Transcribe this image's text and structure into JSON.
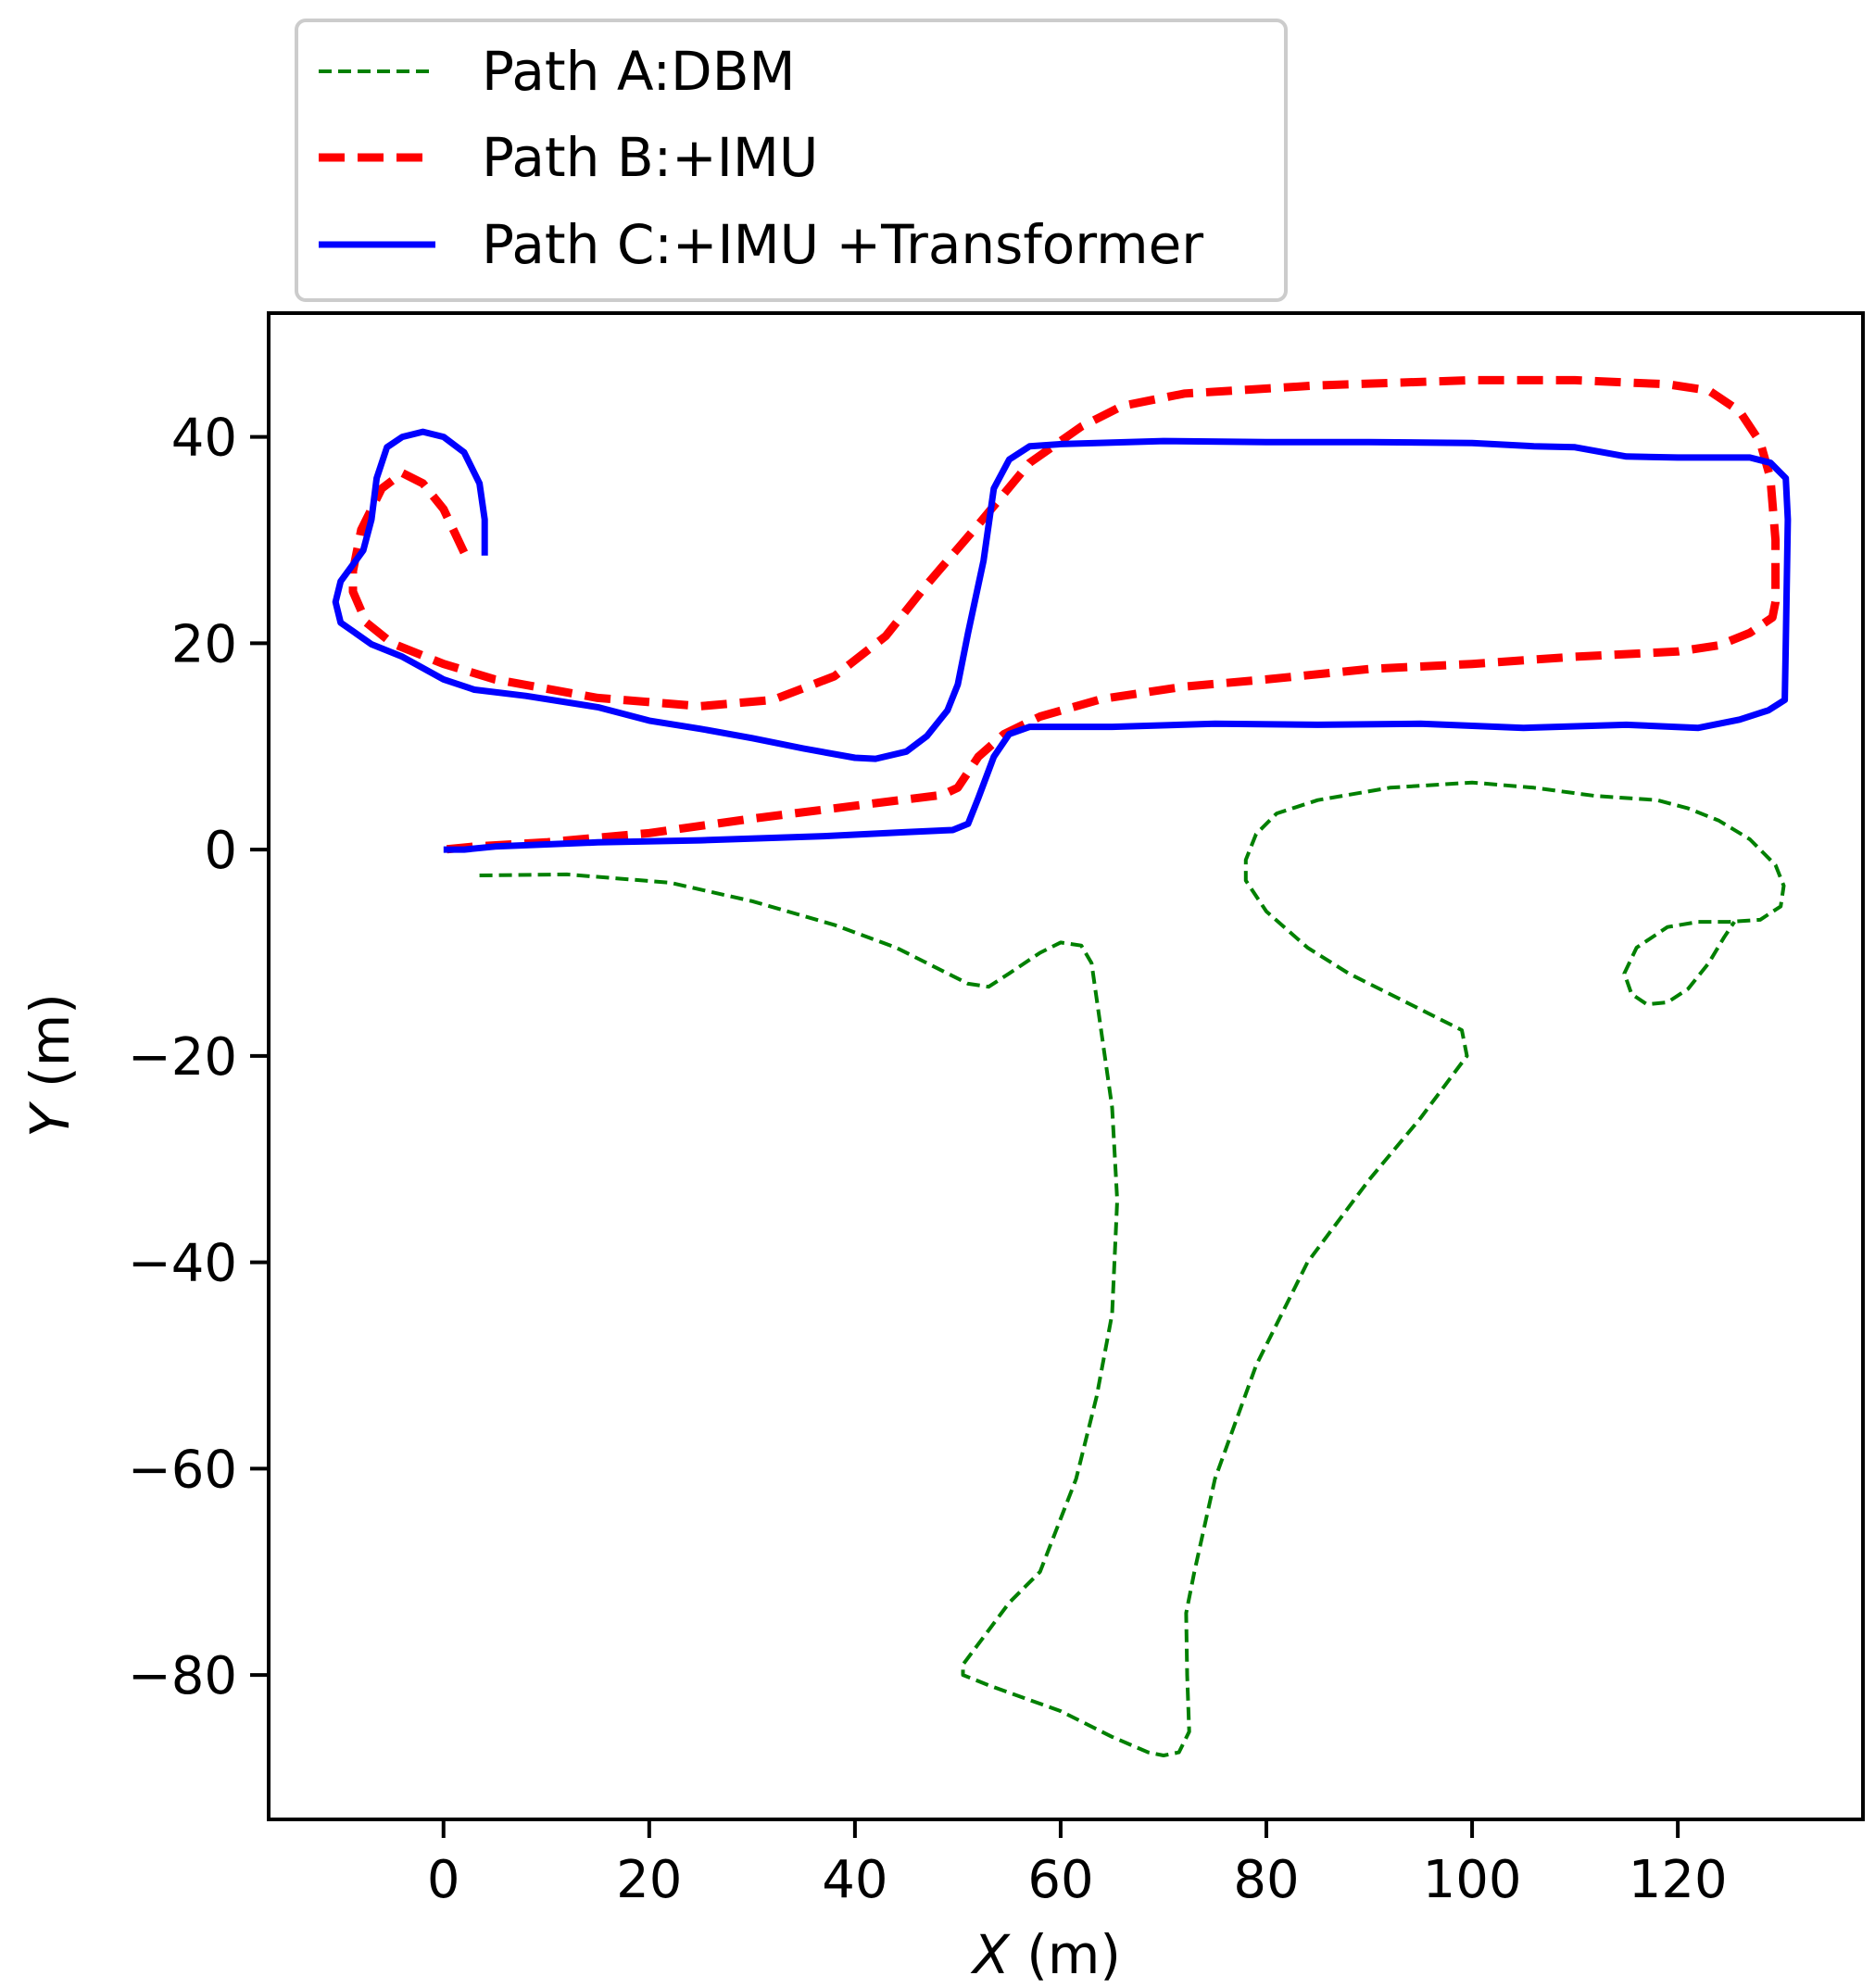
{
  "chart_data": {
    "type": "line",
    "xlabel_var": "X",
    "xlabel_unit": " (m)",
    "ylabel_var": "Y",
    "ylabel_unit": " (m)",
    "xlim": [
      -17,
      138
    ],
    "ylim": [
      -94,
      52
    ],
    "xticks": [
      0,
      20,
      40,
      60,
      80,
      100,
      120
    ],
    "yticks": [
      40,
      20,
      0,
      -20,
      -40,
      -60,
      -80
    ],
    "xtick_labels": [
      "0",
      "20",
      "40",
      "60",
      "80",
      "100",
      "120"
    ],
    "ytick_labels": [
      "40",
      "20",
      "0",
      "−20",
      "−40",
      "−60",
      "−80"
    ],
    "grid": false,
    "legend_position": "above plot, left",
    "series": [
      {
        "name": "Path A:DBM",
        "color": "#008000",
        "style": "dashed-thin",
        "points": [
          [
            3.5,
            -2.5
          ],
          [
            12,
            -2.4
          ],
          [
            22,
            -3.2
          ],
          [
            30,
            -5
          ],
          [
            38,
            -7.3
          ],
          [
            44,
            -9.5
          ],
          [
            48,
            -11.5
          ],
          [
            51,
            -13
          ],
          [
            53,
            -13.3
          ],
          [
            55,
            -12
          ],
          [
            58,
            -10
          ],
          [
            60,
            -9
          ],
          [
            62,
            -9.3
          ],
          [
            63,
            -11
          ],
          [
            64,
            -18
          ],
          [
            65,
            -25
          ],
          [
            65.5,
            -34
          ],
          [
            65,
            -45
          ],
          [
            63.5,
            -53
          ],
          [
            61.5,
            -61
          ],
          [
            58,
            -70
          ],
          [
            55,
            -73
          ],
          [
            52,
            -77
          ],
          [
            50.5,
            -79
          ],
          [
            50.5,
            -80
          ],
          [
            53,
            -81
          ],
          [
            60,
            -83.5
          ],
          [
            65,
            -86
          ],
          [
            68.5,
            -87.5
          ],
          [
            70,
            -87.8
          ],
          [
            71.5,
            -87.5
          ],
          [
            72.5,
            -85.5
          ],
          [
            72.3,
            -80
          ],
          [
            72.2,
            -74
          ],
          [
            73,
            -70
          ],
          [
            75,
            -61
          ],
          [
            79,
            -50
          ],
          [
            84,
            -40
          ],
          [
            90,
            -32
          ],
          [
            95,
            -26
          ],
          [
            98,
            -22
          ],
          [
            99.5,
            -20
          ],
          [
            99,
            -17.5
          ],
          [
            97,
            -16.5
          ],
          [
            93,
            -14.5
          ],
          [
            88,
            -12
          ],
          [
            84,
            -9.5
          ],
          [
            80,
            -6
          ],
          [
            78,
            -3
          ],
          [
            78,
            -1
          ],
          [
            79,
            1.5
          ],
          [
            81,
            3.5
          ],
          [
            85,
            4.8
          ],
          [
            92,
            6
          ],
          [
            100,
            6.5
          ],
          [
            106,
            6
          ],
          [
            112,
            5.2
          ],
          [
            118,
            4.8
          ],
          [
            121,
            4
          ],
          [
            124,
            2.8
          ],
          [
            127,
            1
          ],
          [
            129.5,
            -1.5
          ],
          [
            130.3,
            -3.5
          ],
          [
            130,
            -5.5
          ],
          [
            128,
            -6.8
          ],
          [
            125,
            -7
          ],
          [
            122,
            -7
          ],
          [
            119,
            -7.5
          ],
          [
            116,
            -9.5
          ],
          [
            114.8,
            -12
          ],
          [
            115.5,
            -14
          ],
          [
            117,
            -15
          ],
          [
            119,
            -14.8
          ],
          [
            121,
            -13.5
          ],
          [
            123,
            -11
          ],
          [
            124.5,
            -8.5
          ],
          [
            125.5,
            -7
          ]
        ]
      },
      {
        "name": "Path B:+IMU",
        "color": "#ff0000",
        "style": "dashed-thick",
        "points": [
          [
            2,
            28.8
          ],
          [
            0,
            33
          ],
          [
            -2,
            35.5
          ],
          [
            -4,
            36.5
          ],
          [
            -6,
            35
          ],
          [
            -8,
            31
          ],
          [
            -8.8,
            27
          ],
          [
            -8.8,
            25
          ],
          [
            -7.5,
            22
          ],
          [
            -5,
            20
          ],
          [
            0,
            18
          ],
          [
            5,
            16.5
          ],
          [
            15,
            14.7
          ],
          [
            25,
            13.9
          ],
          [
            32,
            14.5
          ],
          [
            38,
            16.8
          ],
          [
            43,
            20.7
          ],
          [
            47,
            25.7
          ],
          [
            52,
            31.5
          ],
          [
            57,
            37.5
          ],
          [
            62,
            41
          ],
          [
            66,
            43
          ],
          [
            72,
            44.2
          ],
          [
            85,
            45
          ],
          [
            100,
            45.5
          ],
          [
            110,
            45.5
          ],
          [
            119,
            45.1
          ],
          [
            123,
            44.5
          ],
          [
            126,
            42.5
          ],
          [
            128,
            39.5
          ],
          [
            129,
            36
          ],
          [
            129.5,
            30
          ],
          [
            129.5,
            24
          ],
          [
            129.2,
            22.5
          ],
          [
            127,
            21
          ],
          [
            124,
            19.8
          ],
          [
            120,
            19.2
          ],
          [
            110,
            18.7
          ],
          [
            100,
            18
          ],
          [
            90,
            17.5
          ],
          [
            80,
            16.5
          ],
          [
            72,
            15.8
          ],
          [
            64,
            14.6
          ],
          [
            58,
            12.9
          ],
          [
            54.5,
            11.2
          ],
          [
            52,
            9
          ],
          [
            50,
            6
          ],
          [
            48.5,
            5.3
          ],
          [
            42,
            4.5
          ],
          [
            30,
            3
          ],
          [
            20,
            1.6
          ],
          [
            10,
            0.7
          ],
          [
            3,
            0.3
          ],
          [
            0,
            0
          ]
        ]
      },
      {
        "name": "Path C:+IMU +Transformer",
        "color": "#0000ff",
        "style": "solid",
        "points": [
          [
            4,
            28.5
          ],
          [
            4,
            32
          ],
          [
            3.5,
            35.5
          ],
          [
            2,
            38.5
          ],
          [
            0,
            40
          ],
          [
            -2,
            40.5
          ],
          [
            -4,
            40
          ],
          [
            -5.5,
            39
          ],
          [
            -6.5,
            36
          ],
          [
            -7,
            32
          ],
          [
            -7.8,
            29
          ],
          [
            -10,
            26
          ],
          [
            -10.5,
            24
          ],
          [
            -10,
            22
          ],
          [
            -7,
            19.9
          ],
          [
            -4,
            18.7
          ],
          [
            0,
            16.5
          ],
          [
            3,
            15.5
          ],
          [
            8,
            14.9
          ],
          [
            15,
            13.8
          ],
          [
            20,
            12.5
          ],
          [
            25,
            11.7
          ],
          [
            30,
            10.8
          ],
          [
            35,
            9.8
          ],
          [
            40,
            8.9
          ],
          [
            42,
            8.8
          ],
          [
            45,
            9.5
          ],
          [
            47,
            11
          ],
          [
            49,
            13.5
          ],
          [
            50,
            16
          ],
          [
            51,
            21
          ],
          [
            52.5,
            28
          ],
          [
            53.5,
            35
          ],
          [
            55,
            37.8
          ],
          [
            57,
            39.1
          ],
          [
            60,
            39.3
          ],
          [
            70,
            39.6
          ],
          [
            80,
            39.5
          ],
          [
            90,
            39.5
          ],
          [
            100,
            39.4
          ],
          [
            106,
            39.1
          ],
          [
            110,
            39
          ],
          [
            115,
            38.1
          ],
          [
            120,
            38
          ],
          [
            125,
            38
          ],
          [
            127,
            38
          ],
          [
            129,
            37.5
          ],
          [
            130.5,
            36
          ],
          [
            130.7,
            32
          ],
          [
            130.5,
            20
          ],
          [
            130.4,
            14.5
          ],
          [
            128.8,
            13.5
          ],
          [
            126,
            12.6
          ],
          [
            122,
            11.8
          ],
          [
            115,
            12.1
          ],
          [
            105,
            11.8
          ],
          [
            95,
            12.2
          ],
          [
            85,
            12.1
          ],
          [
            75,
            12.2
          ],
          [
            65,
            11.9
          ],
          [
            57,
            11.9
          ],
          [
            55,
            11.2
          ],
          [
            53.5,
            9
          ],
          [
            52,
            5
          ],
          [
            51,
            2.5
          ],
          [
            49.5,
            1.9
          ],
          [
            45,
            1.7
          ],
          [
            37,
            1.3
          ],
          [
            25,
            0.9
          ],
          [
            15,
            0.7
          ],
          [
            5,
            0.3
          ],
          [
            2,
            0
          ],
          [
            0,
            0
          ]
        ]
      }
    ]
  }
}
